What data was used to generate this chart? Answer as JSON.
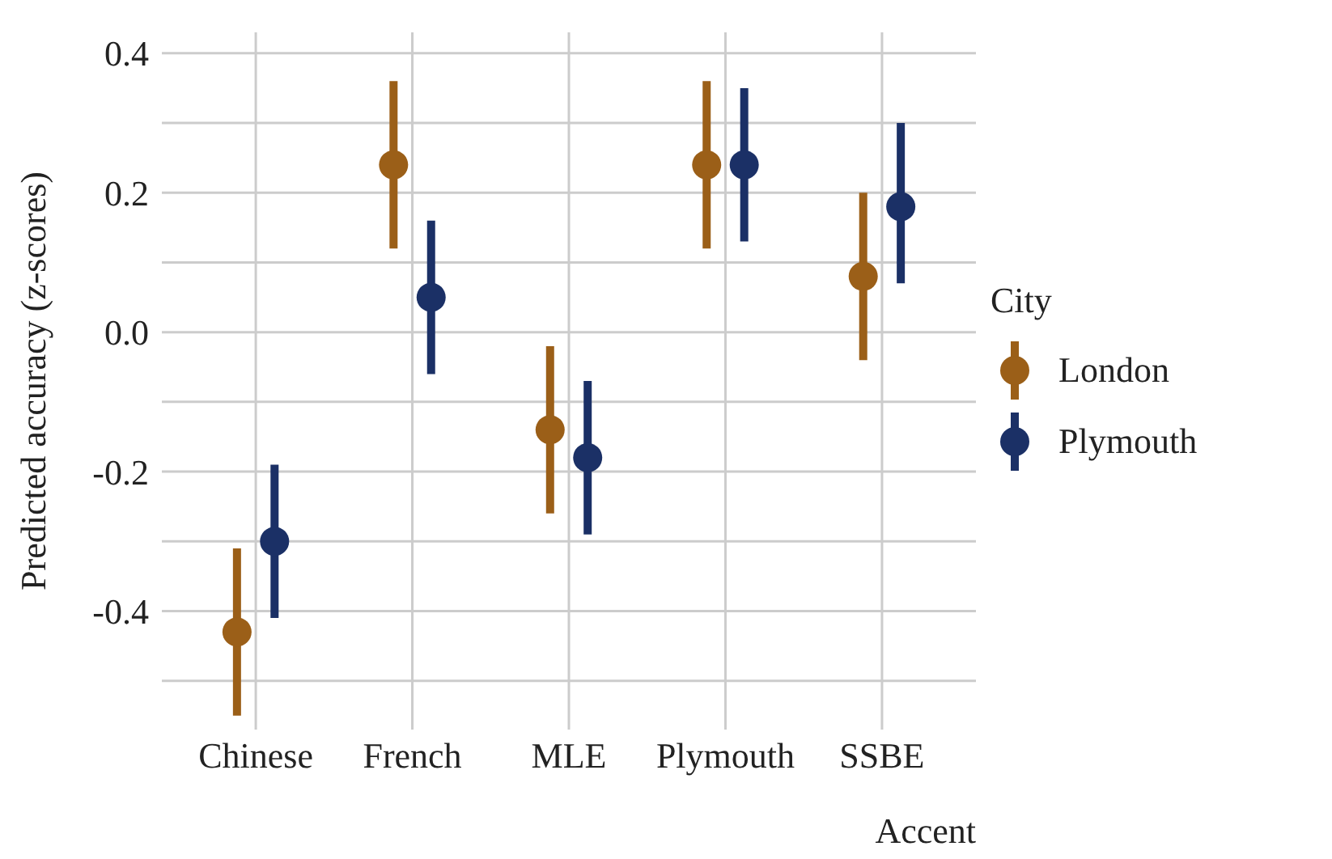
{
  "chart_data": {
    "type": "scatter",
    "xlabel": "Accent",
    "ylabel": "Predicted accuracy (z-scores)",
    "legend_title": "City",
    "categories": [
      "Chinese",
      "French",
      "MLE",
      "Plymouth",
      "SSBE"
    ],
    "series": [
      {
        "name": "London",
        "color": "#9b5f18",
        "values": [
          -0.43,
          0.24,
          -0.14,
          0.24,
          0.08
        ],
        "errors": [
          [
            -0.55,
            -0.31
          ],
          [
            0.12,
            0.36
          ],
          [
            -0.26,
            -0.02
          ],
          [
            0.12,
            0.36
          ],
          [
            -0.04,
            0.2
          ]
        ]
      },
      {
        "name": "Plymouth",
        "color": "#1b3066",
        "values": [
          -0.3,
          0.05,
          -0.18,
          0.24,
          0.18
        ],
        "errors": [
          [
            -0.41,
            -0.19
          ],
          [
            -0.06,
            0.16
          ],
          [
            -0.29,
            -0.07
          ],
          [
            0.13,
            0.35
          ],
          [
            0.07,
            0.3
          ]
        ]
      }
    ],
    "ylim": [
      -0.57,
      0.43
    ],
    "yticks": [
      {
        "value": -0.5,
        "label": null
      },
      -0.4,
      {
        "value": -0.3,
        "label": null
      },
      -0.2,
      {
        "value": -0.1,
        "label": null
      },
      {
        "value": 0,
        "label": "0.0"
      },
      {
        "value": 0.1,
        "label": null
      },
      0.2,
      {
        "value": 0.3,
        "label": null
      },
      0.4
    ],
    "grid": true,
    "legend": "right",
    "marker": "circle"
  }
}
